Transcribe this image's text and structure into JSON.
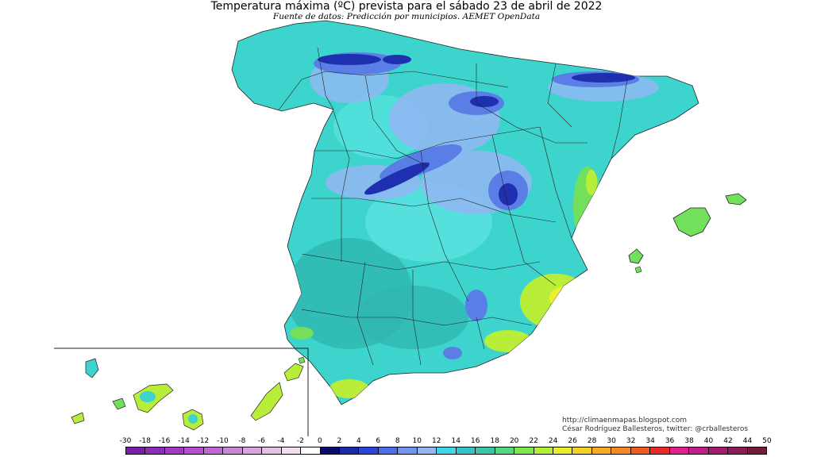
{
  "title": "Temperatura máxima (ºC) prevista para el sábado 23 de abril de 2022",
  "subtitle": "Fuente de datos: Predicción por municipios. AEMET OpenData",
  "credits": {
    "blog": "http://climaenmapas.blogspot.com",
    "author": "César Rodríguez Ballesteros, twitter: @crballesteros"
  },
  "legend": {
    "labels": [
      "-30",
      "-18",
      "-16",
      "-14",
      "-12",
      "-10",
      "-8",
      "-6",
      "-4",
      "-2",
      "0",
      "2",
      "4",
      "6",
      "8",
      "10",
      "12",
      "14",
      "16",
      "18",
      "20",
      "22",
      "24",
      "26",
      "28",
      "30",
      "32",
      "34",
      "36",
      "38",
      "40",
      "42",
      "44",
      "50"
    ],
    "colors": [
      "#7a1fa8",
      "#8e2db8",
      "#a13bc4",
      "#b44ecf",
      "#c267d6",
      "#cc86d8",
      "#d8a5dc",
      "#e3c3e3",
      "#efdfef",
      "#ffffff",
      "#0a0a6b",
      "#1a2aa6",
      "#2a46d6",
      "#4a70e8",
      "#6f95ee",
      "#93b8f3",
      "#3fd8e8",
      "#34c6c6",
      "#3cc4a8",
      "#55d680",
      "#7ee64e",
      "#b5ee36",
      "#e8f02c",
      "#f4d22a",
      "#f7ae26",
      "#f58a24",
      "#ef5c20",
      "#e82a2a",
      "#e0208e",
      "#c21e8a",
      "#a81a72",
      "#8e1a56",
      "#741a3a"
    ]
  },
  "map_colors": {
    "land_base": "#3cd4cc",
    "teal": "#2fb7b0",
    "cyan": "#5fe6e6",
    "light_blue": "#8fb8f2",
    "mid_blue": "#5a7ee6",
    "deep_blue": "#1e2fb0",
    "yellow_green": "#b8ee3a",
    "yellow": "#eaf02c",
    "green": "#72e05a"
  }
}
